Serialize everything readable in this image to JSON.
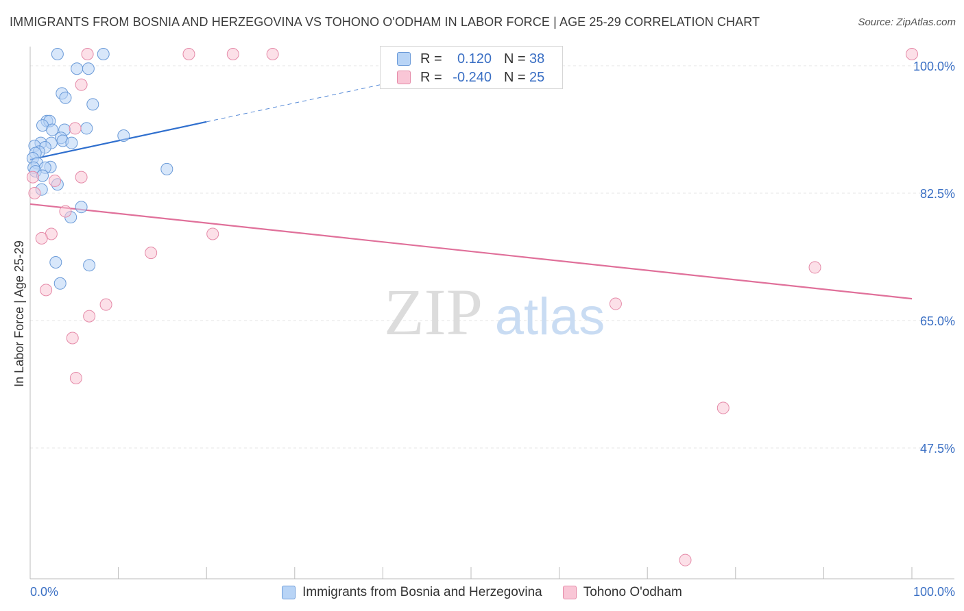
{
  "chart_data": {
    "type": "scatter",
    "title": "IMMIGRANTS FROM BOSNIA AND HERZEGOVINA VS TOHONO O'ODHAM IN LABOR FORCE | AGE 25-29 CORRELATION CHART",
    "source": "Source: ZipAtlas.com",
    "xlabel": "",
    "ylabel": "In Labor Force | Age 25-29",
    "xlim": [
      0,
      100
    ],
    "ylim": [
      31,
      101.6
    ],
    "x_tick_labels": [
      "0.0%",
      "100.0%"
    ],
    "y_ticks": [
      {
        "value": 100,
        "label": "100.0%"
      },
      {
        "value": 82.5,
        "label": "82.5%"
      },
      {
        "value": 65,
        "label": "65.0%"
      },
      {
        "value": 47.5,
        "label": "47.5%"
      }
    ],
    "grid": true,
    "watermark": {
      "zip": "ZIP",
      "atlas": "atlas"
    },
    "series": [
      {
        "name": "Immigrants from Bosnia and Herzegovina",
        "color": "#6a9ad8",
        "fill": "#b8d4f6",
        "line_color": "#2f6fce",
        "R": "0.120",
        "N": "38",
        "trend": {
          "x0": 0,
          "y0": 87.1,
          "x1": 20,
          "y1": 92.3,
          "dash_to_x": 44,
          "dash_to_y": 98.5
        },
        "points": [
          [
            3.1,
            101.6
          ],
          [
            8.3,
            101.6
          ],
          [
            6.6,
            99.6
          ],
          [
            5.3,
            99.6
          ],
          [
            3.6,
            96.2
          ],
          [
            4.0,
            95.6
          ],
          [
            7.1,
            94.7
          ],
          [
            1.9,
            92.4
          ],
          [
            2.2,
            92.4
          ],
          [
            1.4,
            91.8
          ],
          [
            2.5,
            91.2
          ],
          [
            3.9,
            91.2
          ],
          [
            6.4,
            91.4
          ],
          [
            10.6,
            90.4
          ],
          [
            3.5,
            90.1
          ],
          [
            3.7,
            89.7
          ],
          [
            4.7,
            89.4
          ],
          [
            2.4,
            89.4
          ],
          [
            1.2,
            89.4
          ],
          [
            0.5,
            89.0
          ],
          [
            1.7,
            88.8
          ],
          [
            1.0,
            88.2
          ],
          [
            0.6,
            88.0
          ],
          [
            0.3,
            87.3
          ],
          [
            0.8,
            86.6
          ],
          [
            0.4,
            86.0
          ],
          [
            2.3,
            86.1
          ],
          [
            1.7,
            86.0
          ],
          [
            15.5,
            85.8
          ],
          [
            0.6,
            85.5
          ],
          [
            1.4,
            84.9
          ],
          [
            3.1,
            83.7
          ],
          [
            1.3,
            83.0
          ],
          [
            5.8,
            80.6
          ],
          [
            4.6,
            79.2
          ],
          [
            2.9,
            73.0
          ],
          [
            6.7,
            72.6
          ],
          [
            3.4,
            70.1
          ]
        ]
      },
      {
        "name": "Tohono O'odham",
        "color": "#e58aa8",
        "fill": "#f9c6d6",
        "line_color": "#e0709a",
        "R": "-0.240",
        "N": "25",
        "trend": {
          "x0": 0,
          "y0": 81.0,
          "x1": 100,
          "y1": 68.0
        },
        "points": [
          [
            6.5,
            101.6
          ],
          [
            18.0,
            101.6
          ],
          [
            23.0,
            101.6
          ],
          [
            27.5,
            101.6
          ],
          [
            100.0,
            101.6
          ],
          [
            5.8,
            97.4
          ],
          [
            5.1,
            91.4
          ],
          [
            5.8,
            84.7
          ],
          [
            0.3,
            84.7
          ],
          [
            2.8,
            84.2
          ],
          [
            0.5,
            82.5
          ],
          [
            4.0,
            80.0
          ],
          [
            2.4,
            76.9
          ],
          [
            20.7,
            76.9
          ],
          [
            1.3,
            76.3
          ],
          [
            13.7,
            74.3
          ],
          [
            89.0,
            72.3
          ],
          [
            1.8,
            69.2
          ],
          [
            8.6,
            67.2
          ],
          [
            66.4,
            67.3
          ],
          [
            6.7,
            65.6
          ],
          [
            4.8,
            62.6
          ],
          [
            5.2,
            57.1
          ],
          [
            78.6,
            53.0
          ],
          [
            74.3,
            32.1
          ]
        ]
      }
    ]
  },
  "legend": {
    "series1_label": "Immigrants from Bosnia and Herzegovina",
    "series2_label": "Tohono O'odham"
  },
  "stats": {
    "r_label": "R =",
    "n_label": "N ="
  }
}
